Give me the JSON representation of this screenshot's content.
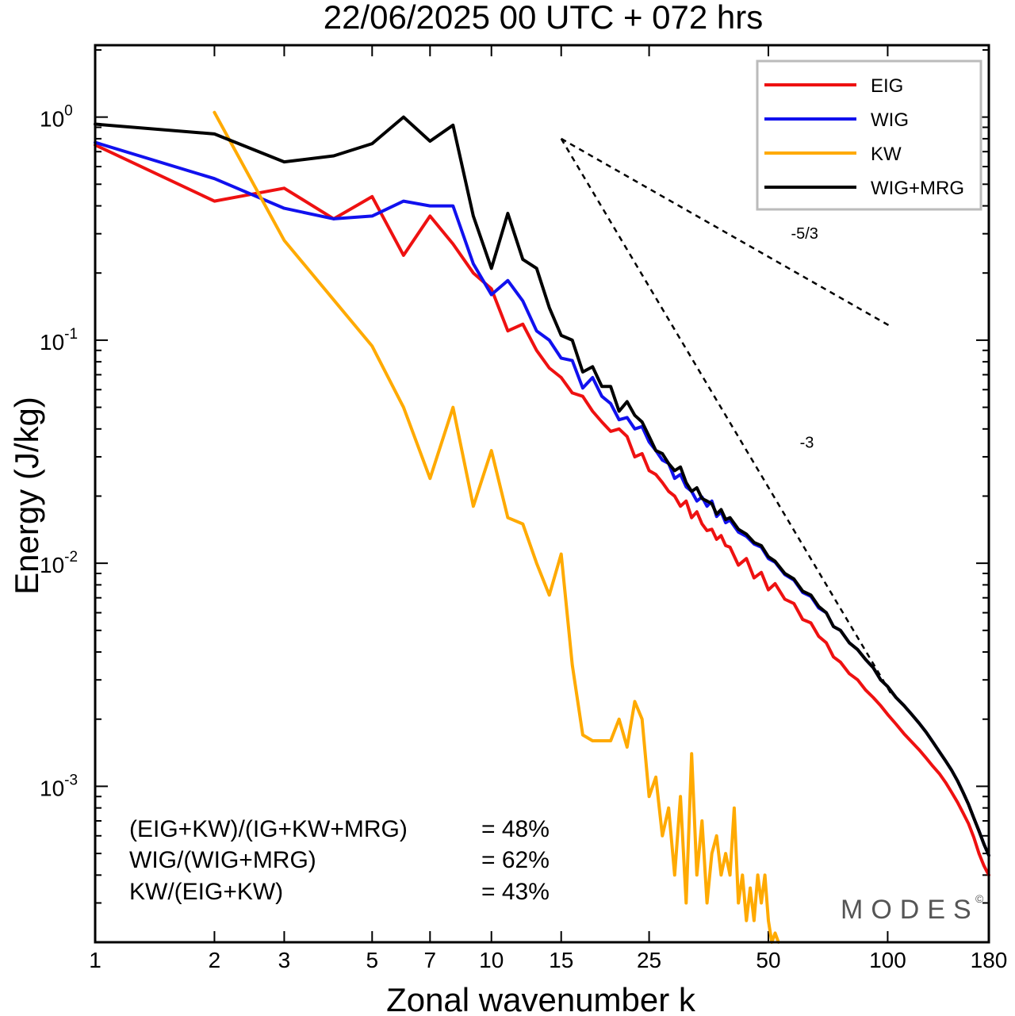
{
  "chart_data": {
    "type": "line",
    "title": "22/06/2025  00 UTC  + 072 hrs",
    "xlabel": "Zonal wavenumber k",
    "ylabel": "Energy (J/kg)",
    "xscale": "log",
    "yscale": "log",
    "xlim": [
      1,
      180
    ],
    "ylim": [
      0.0002,
      2.1
    ],
    "xticks": [
      1,
      2,
      3,
      5,
      7,
      10,
      15,
      25,
      50,
      100,
      180
    ],
    "xtick_labels": [
      "1",
      "2",
      "3",
      "5",
      "7",
      "10",
      "15",
      "25",
      "50",
      "100",
      "180"
    ],
    "yticks": [
      {
        "value": 1,
        "base": "10",
        "exp": "0"
      },
      {
        "value": 0.1,
        "base": "10",
        "exp": "-1"
      },
      {
        "value": 0.01,
        "base": "10",
        "exp": "-2"
      },
      {
        "value": 0.001,
        "base": "10",
        "exp": "-3"
      }
    ],
    "legend_position": "top-right",
    "series": [
      {
        "name": "EIG",
        "color": "#ee1111",
        "points": [
          [
            1,
            0.75
          ],
          [
            2,
            0.42
          ],
          [
            3,
            0.48
          ],
          [
            4,
            0.35
          ],
          [
            5,
            0.44
          ],
          [
            6,
            0.24
          ],
          [
            7,
            0.36
          ],
          [
            8,
            0.27
          ],
          [
            9,
            0.2
          ],
          [
            10,
            0.17
          ],
          [
            11,
            0.11
          ],
          [
            12,
            0.118
          ],
          [
            13,
            0.09
          ],
          [
            14,
            0.075
          ],
          [
            15,
            0.068
          ],
          [
            16,
            0.058
          ],
          [
            17,
            0.056
          ],
          [
            18,
            0.048
          ],
          [
            19,
            0.043
          ],
          [
            20,
            0.039
          ],
          [
            21,
            0.04
          ],
          [
            22,
            0.037
          ],
          [
            23,
            0.03
          ],
          [
            24,
            0.031
          ],
          [
            25,
            0.026
          ],
          [
            26,
            0.025
          ],
          [
            27,
            0.023
          ],
          [
            28,
            0.021
          ],
          [
            29,
            0.02
          ],
          [
            30,
            0.018
          ],
          [
            31,
            0.019
          ],
          [
            32,
            0.016
          ],
          [
            33,
            0.017
          ],
          [
            34,
            0.015
          ],
          [
            35,
            0.014
          ],
          [
            36,
            0.0142
          ],
          [
            37,
            0.0128
          ],
          [
            38,
            0.0133
          ],
          [
            39,
            0.012
          ],
          [
            40,
            0.0118
          ],
          [
            42,
            0.0098
          ],
          [
            44,
            0.0105
          ],
          [
            46,
            0.0086
          ],
          [
            48,
            0.0091
          ],
          [
            50,
            0.0076
          ],
          [
            52,
            0.0081
          ],
          [
            55,
            0.0069
          ],
          [
            58,
            0.0066
          ],
          [
            61,
            0.0056
          ],
          [
            64,
            0.0054
          ],
          [
            67,
            0.0047
          ],
          [
            70,
            0.0044
          ],
          [
            73,
            0.0038
          ],
          [
            76,
            0.0036
          ],
          [
            80,
            0.0032
          ],
          [
            84,
            0.003
          ],
          [
            88,
            0.0027
          ],
          [
            92,
            0.0025
          ],
          [
            96,
            0.0023
          ],
          [
            100,
            0.0021
          ],
          [
            105,
            0.0019
          ],
          [
            110,
            0.00172
          ],
          [
            115,
            0.00158
          ],
          [
            120,
            0.00146
          ],
          [
            125,
            0.00134
          ],
          [
            130,
            0.00123
          ],
          [
            135,
            0.00114
          ],
          [
            140,
            0.00104
          ],
          [
            145,
            0.00094
          ],
          [
            150,
            0.00085
          ],
          [
            155,
            0.00076
          ],
          [
            160,
            0.00068
          ],
          [
            165,
            0.00059
          ],
          [
            170,
            0.0005
          ],
          [
            175,
            0.00044
          ],
          [
            180,
            0.0004
          ]
        ]
      },
      {
        "name": "WIG",
        "color": "#1111ee",
        "points": [
          [
            1,
            0.77
          ],
          [
            2,
            0.53
          ],
          [
            3,
            0.39
          ],
          [
            4,
            0.35
          ],
          [
            5,
            0.36
          ],
          [
            6,
            0.42
          ],
          [
            7,
            0.4
          ],
          [
            8,
            0.4
          ],
          [
            9,
            0.22
          ],
          [
            10,
            0.16
          ],
          [
            11,
            0.185
          ],
          [
            12,
            0.15
          ],
          [
            13,
            0.11
          ],
          [
            14,
            0.1
          ],
          [
            15,
            0.083
          ],
          [
            16,
            0.081
          ],
          [
            17,
            0.061
          ],
          [
            18,
            0.068
          ],
          [
            19,
            0.056
          ],
          [
            20,
            0.052
          ],
          [
            21,
            0.044
          ],
          [
            22,
            0.045
          ],
          [
            23,
            0.04
          ],
          [
            24,
            0.041
          ],
          [
            25,
            0.035
          ],
          [
            26,
            0.032
          ],
          [
            27,
            0.029
          ],
          [
            28,
            0.028
          ],
          [
            29,
            0.024
          ],
          [
            30,
            0.025
          ],
          [
            31,
            0.022
          ],
          [
            32,
            0.021
          ],
          [
            33,
            0.019
          ],
          [
            34,
            0.0198
          ],
          [
            35,
            0.018
          ],
          [
            36,
            0.019
          ],
          [
            37,
            0.0162
          ],
          [
            38,
            0.017
          ],
          [
            39,
            0.0152
          ],
          [
            40,
            0.0156
          ],
          [
            42,
            0.0138
          ],
          [
            44,
            0.0132
          ],
          [
            46,
            0.0122
          ],
          [
            48,
            0.0118
          ],
          [
            50,
            0.0105
          ],
          [
            52,
            0.0101
          ],
          [
            55,
            0.0089
          ],
          [
            58,
            0.0084
          ],
          [
            61,
            0.0074
          ],
          [
            64,
            0.0071
          ],
          [
            67,
            0.0063
          ],
          [
            70,
            0.006
          ],
          [
            73,
            0.0052
          ],
          [
            76,
            0.005
          ],
          [
            80,
            0.0044
          ],
          [
            84,
            0.0041
          ],
          [
            88,
            0.0037
          ],
          [
            92,
            0.0034
          ],
          [
            96,
            0.003
          ],
          [
            100,
            0.0028
          ],
          [
            105,
            0.0025
          ],
          [
            110,
            0.0023
          ],
          [
            115,
            0.0021
          ],
          [
            120,
            0.00192
          ],
          [
            125,
            0.00175
          ],
          [
            130,
            0.00158
          ],
          [
            135,
            0.00143
          ],
          [
            140,
            0.0013
          ],
          [
            145,
            0.00118
          ],
          [
            150,
            0.00106
          ],
          [
            155,
            0.00094
          ],
          [
            160,
            0.00083
          ],
          [
            165,
            0.00072
          ],
          [
            170,
            0.00063
          ],
          [
            175,
            0.00055
          ],
          [
            180,
            0.00049
          ]
        ]
      },
      {
        "name": "KW",
        "color": "#ffaa00",
        "points": [
          [
            2,
            1.05
          ],
          [
            3,
            0.28
          ],
          [
            5,
            0.094
          ],
          [
            6,
            0.05
          ],
          [
            7,
            0.024
          ],
          [
            8,
            0.05
          ],
          [
            9,
            0.018
          ],
          [
            10,
            0.032
          ],
          [
            11,
            0.016
          ],
          [
            12,
            0.015
          ],
          [
            13,
            0.01
          ],
          [
            14,
            0.0072
          ],
          [
            15,
            0.011
          ],
          [
            16,
            0.0035
          ],
          [
            17,
            0.0017
          ],
          [
            18,
            0.0016
          ],
          [
            19,
            0.0016
          ],
          [
            20,
            0.0016
          ],
          [
            21,
            0.002
          ],
          [
            22,
            0.0015
          ],
          [
            23,
            0.0024
          ],
          [
            24,
            0.002
          ],
          [
            25,
            0.0009
          ],
          [
            26,
            0.0011
          ],
          [
            27,
            0.0006
          ],
          [
            28,
            0.0008
          ],
          [
            29,
            0.0004
          ],
          [
            30,
            0.0009
          ],
          [
            31,
            0.0003
          ],
          [
            32,
            0.0014
          ],
          [
            33,
            0.0004
          ],
          [
            34,
            0.0007
          ],
          [
            35,
            0.0003
          ],
          [
            36,
            0.0005
          ],
          [
            37,
            0.0006
          ],
          [
            38,
            0.0004
          ],
          [
            39,
            0.0005
          ],
          [
            40,
            0.0004
          ],
          [
            41,
            0.0008
          ],
          [
            42,
            0.0003
          ],
          [
            43,
            0.0004
          ],
          [
            44,
            0.00025
          ],
          [
            45,
            0.00035
          ],
          [
            46,
            0.00025
          ],
          [
            47,
            0.0004
          ],
          [
            48,
            0.0003
          ],
          [
            49,
            0.0004
          ],
          [
            50,
            0.00025
          ],
          [
            51,
            0.0002
          ],
          [
            52,
            0.00022
          ],
          [
            53,
            0.0002
          ]
        ]
      },
      {
        "name": "WIG+MRG",
        "color": "#000000",
        "points": [
          [
            1,
            0.93
          ],
          [
            2,
            0.84
          ],
          [
            3,
            0.63
          ],
          [
            4,
            0.67
          ],
          [
            5,
            0.76
          ],
          [
            6,
            1.0
          ],
          [
            7,
            0.78
          ],
          [
            8,
            0.92
          ],
          [
            9,
            0.36
          ],
          [
            10,
            0.21
          ],
          [
            11,
            0.37
          ],
          [
            12,
            0.23
          ],
          [
            13,
            0.21
          ],
          [
            14,
            0.14
          ],
          [
            15,
            0.105
          ],
          [
            16,
            0.1
          ],
          [
            17,
            0.072
          ],
          [
            18,
            0.076
          ],
          [
            19,
            0.062
          ],
          [
            20,
            0.062
          ],
          [
            21,
            0.048
          ],
          [
            22,
            0.053
          ],
          [
            23,
            0.046
          ],
          [
            24,
            0.043
          ],
          [
            25,
            0.037
          ],
          [
            26,
            0.032
          ],
          [
            27,
            0.031
          ],
          [
            28,
            0.028
          ],
          [
            29,
            0.026
          ],
          [
            30,
            0.027
          ],
          [
            31,
            0.023
          ],
          [
            32,
            0.021
          ],
          [
            33,
            0.0218
          ],
          [
            34,
            0.0195
          ],
          [
            35,
            0.019
          ],
          [
            36,
            0.0185
          ],
          [
            37,
            0.0166
          ],
          [
            38,
            0.0174
          ],
          [
            39,
            0.0157
          ],
          [
            40,
            0.016
          ],
          [
            42,
            0.0142
          ],
          [
            44,
            0.0135
          ],
          [
            46,
            0.0124
          ],
          [
            48,
            0.012
          ],
          [
            50,
            0.0107
          ],
          [
            52,
            0.0102
          ],
          [
            55,
            0.009
          ],
          [
            58,
            0.0085
          ],
          [
            61,
            0.0075
          ],
          [
            64,
            0.0072
          ],
          [
            67,
            0.0064
          ],
          [
            70,
            0.006
          ],
          [
            73,
            0.0052
          ],
          [
            76,
            0.005
          ],
          [
            80,
            0.0044
          ],
          [
            84,
            0.0041
          ],
          [
            88,
            0.0037
          ],
          [
            92,
            0.0034
          ],
          [
            96,
            0.003
          ],
          [
            100,
            0.0028
          ],
          [
            105,
            0.0025
          ],
          [
            110,
            0.0023
          ],
          [
            115,
            0.0021
          ],
          [
            120,
            0.00192
          ],
          [
            125,
            0.00175
          ],
          [
            130,
            0.00158
          ],
          [
            135,
            0.00143
          ],
          [
            140,
            0.0013
          ],
          [
            145,
            0.00118
          ],
          [
            150,
            0.00106
          ],
          [
            155,
            0.00094
          ],
          [
            160,
            0.00083
          ],
          [
            165,
            0.00072
          ],
          [
            170,
            0.00063
          ],
          [
            175,
            0.00055
          ],
          [
            180,
            0.00049
          ]
        ]
      }
    ],
    "reference_slopes": [
      {
        "label": "-5/3",
        "points": [
          [
            15,
            0.8
          ],
          [
            102,
            0.115
          ]
        ],
        "label_at": [
          57,
          0.285
        ]
      },
      {
        "label": "-3",
        "points": [
          [
            15,
            0.8
          ],
          [
            102,
            0.0026
          ]
        ],
        "label_at": [
          60,
          0.033
        ]
      }
    ],
    "ratios": [
      {
        "label": "(EIG+KW)/(IG+KW+MRG)",
        "value": "= 48%"
      },
      {
        "label": "WIG/(WIG+MRG)",
        "value": "= 62%"
      },
      {
        "label": "KW/(EIG+KW)",
        "value": "= 43%"
      }
    ],
    "brand": "MODES",
    "brand_mark": "©"
  }
}
